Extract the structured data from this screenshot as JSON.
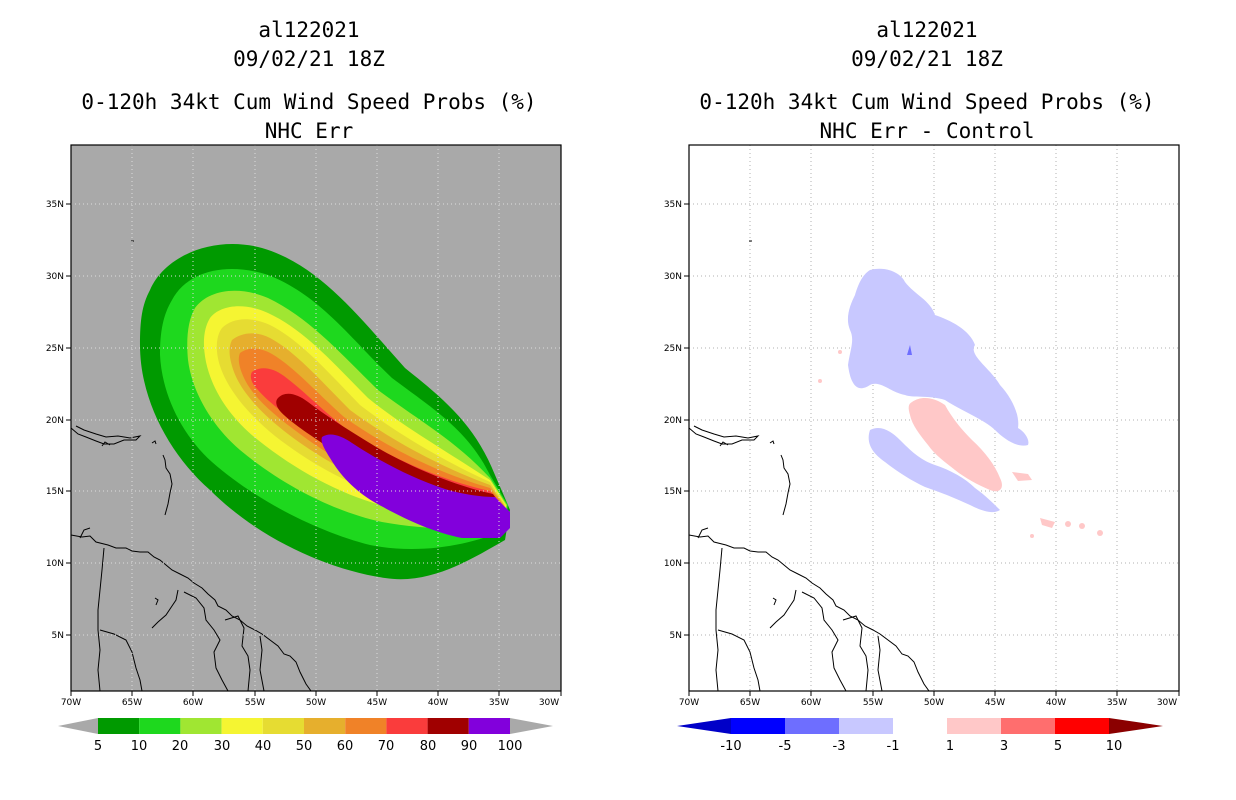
{
  "panels": [
    {
      "id": "left",
      "storm_id": "al122021",
      "datetime": "09/02/21 18Z",
      "title": "0-120h 34kt Cum Wind Speed Probs (%)",
      "subtitle": "NHC Err",
      "lat_labels": [
        "35N",
        "30N",
        "25N",
        "20N",
        "15N",
        "10N",
        "5N"
      ],
      "lon_labels": [
        "70W",
        "65W",
        "60W",
        "55W",
        "50W",
        "45W",
        "40W",
        "35W",
        "30W"
      ],
      "colorbar": {
        "colors": [
          "#009a00",
          "#1ed81e",
          "#a0e632",
          "#f5f532",
          "#e6dc32",
          "#e6af2d",
          "#f08228",
          "#fa3c3c",
          "#a00000",
          "#8200dc"
        ],
        "labels": [
          "5",
          "10",
          "20",
          "30",
          "40",
          "50",
          "60",
          "70",
          "80",
          "90",
          "100"
        ]
      }
    },
    {
      "id": "right",
      "storm_id": "al122021",
      "datetime": "09/02/21 18Z",
      "title": "0-120h 34kt Cum Wind Speed Probs (%)",
      "subtitle": "NHC Err - Control",
      "lat_labels": [
        "35N",
        "30N",
        "25N",
        "20N",
        "15N",
        "10N",
        "5N"
      ],
      "lon_labels": [
        "70W",
        "65W",
        "60W",
        "55W",
        "50W",
        "45W",
        "40W",
        "35W",
        "30W"
      ],
      "colorbar": {
        "colors": [
          "#0000c8",
          "#0000ff",
          "#6e6eff",
          "#c8c8ff",
          "#ffffff",
          "#ffc8c8",
          "#ff6e6e",
          "#ff0000",
          "#8b0000"
        ],
        "labels": [
          "-10",
          "-5",
          "-3",
          "-1",
          "1",
          "3",
          "5",
          "10"
        ]
      }
    }
  ],
  "colors": {
    "left_background": "#a9a9a9",
    "land_outline": "#000000",
    "grid": "#bbbbbb"
  }
}
